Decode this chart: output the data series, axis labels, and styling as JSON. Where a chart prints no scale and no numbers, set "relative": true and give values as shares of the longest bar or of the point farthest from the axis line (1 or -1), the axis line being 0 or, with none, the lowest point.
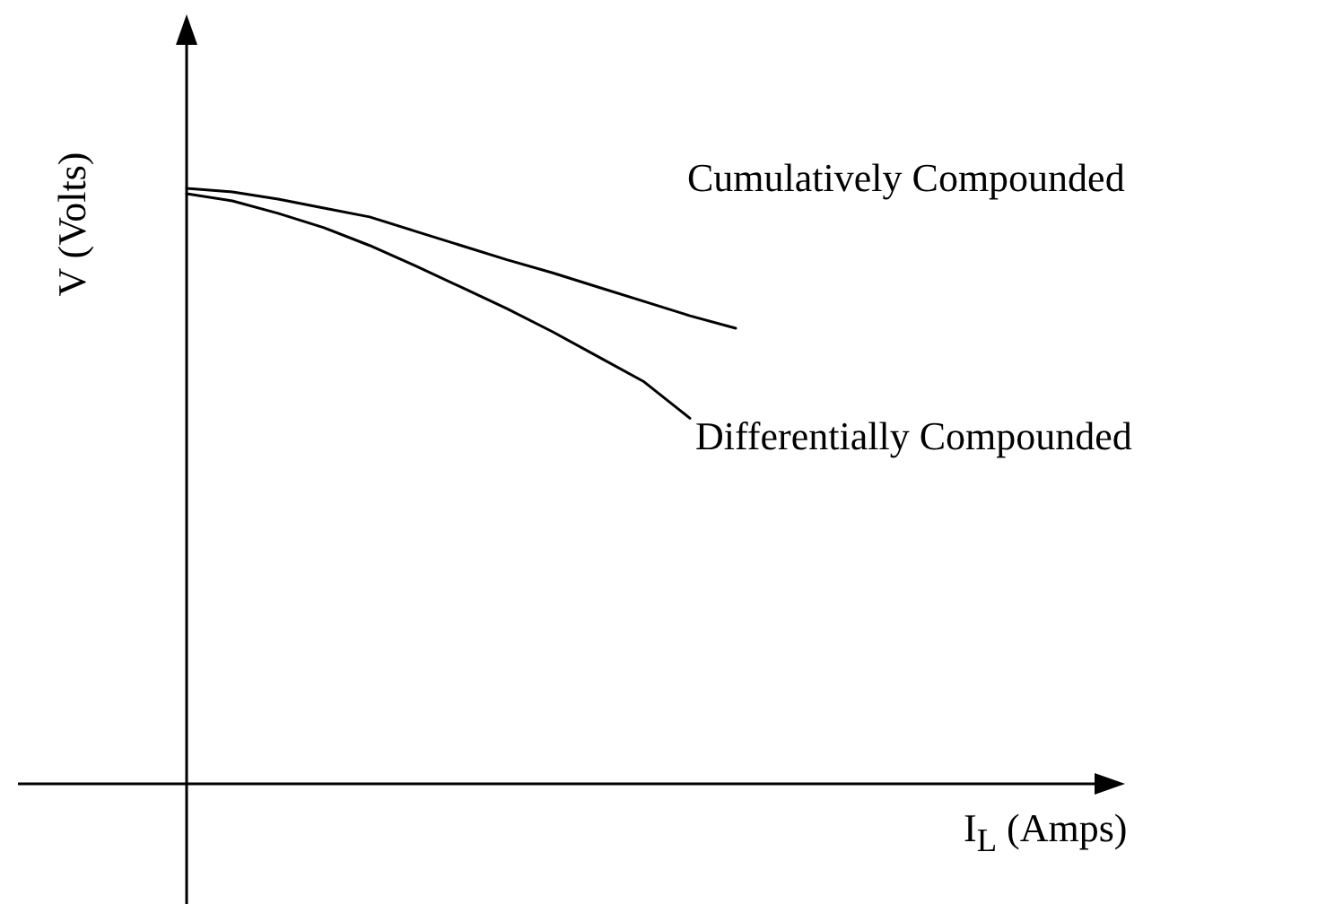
{
  "chart_data": {
    "type": "line",
    "relative": true,
    "annotations": [
      "I$_{L}$ (Amps)"
    ],
    "ylabel": "V (Volts)",
    "legend": false,
    "grid": false,
    "marker": "none",
    "line_style": "solid",
    "categories": [
      null,
      null,
      null,
      null,
      null,
      null,
      null,
      null,
      null,
      null,
      null,
      null,
      null
    ],
    "series": [
      {
        "name": "Cumulatively Compounded",
        "color": "#000000",
        "values": [
          1,
          0.994,
          0.982,
          0.967,
          0.952,
          0.928,
          0.904,
          0.88,
          0.858,
          0.834,
          0.81,
          0.786,
          0.765
        ]
      },
      {
        "name": "Differentially Compounded",
        "color": "#000000",
        "values": [
          0.991,
          0.979,
          0.958,
          0.934,
          0.904,
          0.87,
          0.834,
          0.798,
          0.759,
          0.717,
          0.675,
          0.614,
          null
        ]
      }
    ]
  }
}
